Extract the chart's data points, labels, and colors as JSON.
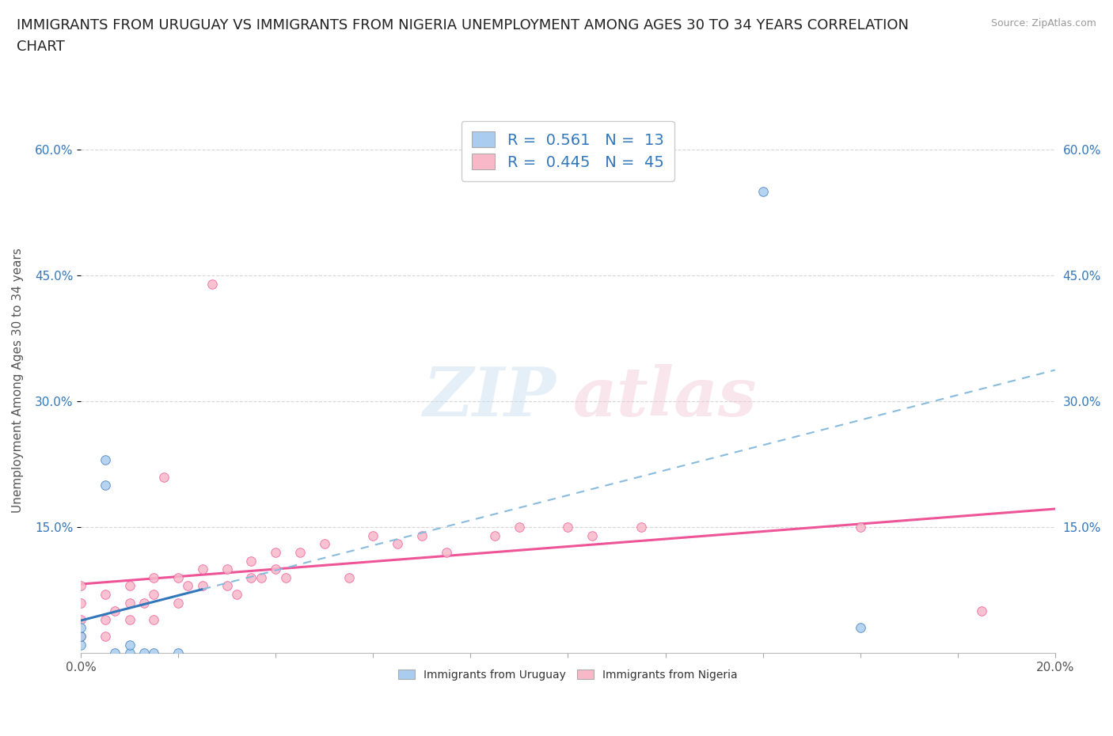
{
  "title": "IMMIGRANTS FROM URUGUAY VS IMMIGRANTS FROM NIGERIA UNEMPLOYMENT AMONG AGES 30 TO 34 YEARS CORRELATION\nCHART",
  "source": "Source: ZipAtlas.com",
  "ylabel": "Unemployment Among Ages 30 to 34 years",
  "xlim": [
    0.0,
    0.2
  ],
  "ylim": [
    0.0,
    0.65
  ],
  "ytick_labels": [
    "15.0%",
    "30.0%",
    "45.0%",
    "60.0%"
  ],
  "ytick_values": [
    0.15,
    0.3,
    0.45,
    0.6
  ],
  "background_color": "#ffffff",
  "uruguay_color": "#aaccee",
  "nigeria_color": "#f8b8c8",
  "uruguay_line_color": "#3377bb",
  "nigeria_line_color": "#ee5599",
  "uruguay_R": 0.561,
  "uruguay_N": 13,
  "nigeria_R": 0.445,
  "nigeria_N": 45,
  "uruguay_scatter_x": [
    0.0,
    0.0,
    0.0,
    0.005,
    0.005,
    0.007,
    0.01,
    0.01,
    0.013,
    0.015,
    0.02,
    0.14,
    0.16
  ],
  "uruguay_scatter_y": [
    0.01,
    0.02,
    0.03,
    0.2,
    0.23,
    0.0,
    0.0,
    0.01,
    0.0,
    0.0,
    0.0,
    0.55,
    0.03
  ],
  "nigeria_scatter_x": [
    0.0,
    0.0,
    0.0,
    0.0,
    0.005,
    0.005,
    0.005,
    0.007,
    0.01,
    0.01,
    0.01,
    0.013,
    0.015,
    0.015,
    0.015,
    0.017,
    0.02,
    0.02,
    0.022,
    0.025,
    0.025,
    0.027,
    0.03,
    0.03,
    0.032,
    0.035,
    0.035,
    0.037,
    0.04,
    0.04,
    0.042,
    0.045,
    0.05,
    0.055,
    0.06,
    0.065,
    0.07,
    0.075,
    0.085,
    0.09,
    0.1,
    0.105,
    0.115,
    0.16,
    0.185
  ],
  "nigeria_scatter_y": [
    0.02,
    0.04,
    0.06,
    0.08,
    0.02,
    0.04,
    0.07,
    0.05,
    0.04,
    0.06,
    0.08,
    0.06,
    0.04,
    0.07,
    0.09,
    0.21,
    0.06,
    0.09,
    0.08,
    0.08,
    0.1,
    0.44,
    0.08,
    0.1,
    0.07,
    0.09,
    0.11,
    0.09,
    0.1,
    0.12,
    0.09,
    0.12,
    0.13,
    0.09,
    0.14,
    0.13,
    0.14,
    0.12,
    0.14,
    0.15,
    0.15,
    0.14,
    0.15,
    0.15,
    0.05
  ],
  "grid_color": "#cccccc",
  "title_fontsize": 13,
  "axis_label_fontsize": 11,
  "tick_fontsize": 11,
  "legend_fontsize": 14
}
